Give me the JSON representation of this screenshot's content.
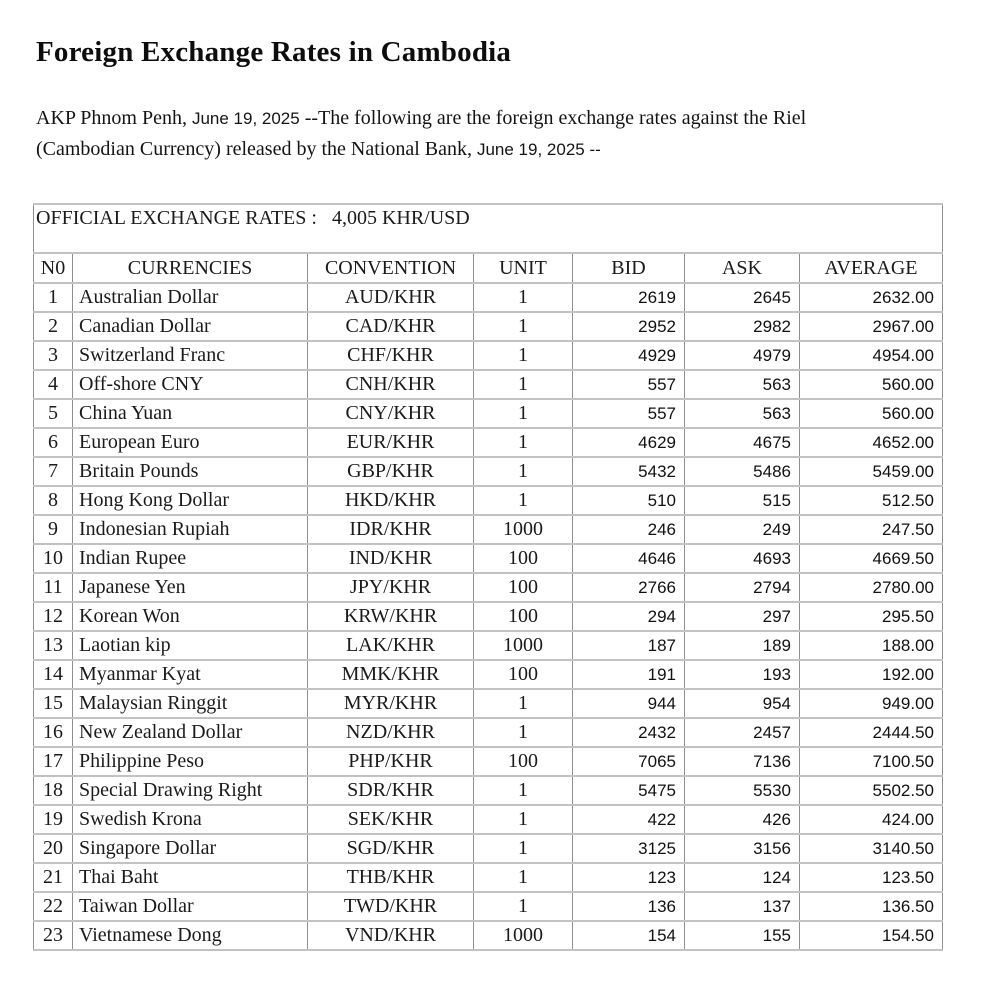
{
  "page": {
    "title": "Foreign Exchange Rates in Cambodia"
  },
  "intro": {
    "pre1": "AKP Phnom Penh, ",
    "date1": "June 19, 2025",
    "post1": " --The following are the foreign exchange rates against the Riel",
    "line2_pre": "(Cambodian Currency) released by the National Bank, ",
    "date2": "June 19, 2025",
    "post2": " --"
  },
  "rates_table": {
    "official_label": "OFFICIAL EXCHANGE RATES :",
    "official_value": "4,005 KHR/USD",
    "columns": [
      "N0",
      "CURRENCIES",
      "CONVENTION",
      "UNIT",
      "BID",
      "ASK",
      "AVERAGE"
    ],
    "rows": [
      {
        "no": "1",
        "currency": "Australian Dollar",
        "convention": "AUD/KHR",
        "unit": "1",
        "bid": "2619",
        "ask": "2645",
        "average": "2632.00"
      },
      {
        "no": "2",
        "currency": "Canadian Dollar",
        "convention": "CAD/KHR",
        "unit": "1",
        "bid": "2952",
        "ask": "2982",
        "average": "2967.00"
      },
      {
        "no": "3",
        "currency": "Switzerland Franc",
        "convention": "CHF/KHR",
        "unit": "1",
        "bid": "4929",
        "ask": "4979",
        "average": "4954.00"
      },
      {
        "no": "4",
        "currency": "Off-shore CNY",
        "convention": "CNH/KHR",
        "unit": "1",
        "bid": "557",
        "ask": "563",
        "average": "560.00"
      },
      {
        "no": "5",
        "currency": "China Yuan",
        "convention": "CNY/KHR",
        "unit": "1",
        "bid": "557",
        "ask": "563",
        "average": "560.00"
      },
      {
        "no": "6",
        "currency": "European Euro",
        "convention": "EUR/KHR",
        "unit": "1",
        "bid": "4629",
        "ask": "4675",
        "average": "4652.00"
      },
      {
        "no": "7",
        "currency": "Britain Pounds",
        "convention": "GBP/KHR",
        "unit": "1",
        "bid": "5432",
        "ask": "5486",
        "average": "5459.00"
      },
      {
        "no": "8",
        "currency": "Hong Kong Dollar",
        "convention": "HKD/KHR",
        "unit": "1",
        "bid": "510",
        "ask": "515",
        "average": "512.50"
      },
      {
        "no": "9",
        "currency": "Indonesian Rupiah",
        "convention": "IDR/KHR",
        "unit": "1000",
        "bid": "246",
        "ask": "249",
        "average": "247.50"
      },
      {
        "no": "10",
        "currency": "Indian Rupee",
        "convention": "IND/KHR",
        "unit": "100",
        "bid": "4646",
        "ask": "4693",
        "average": "4669.50"
      },
      {
        "no": "11",
        "currency": "Japanese Yen",
        "convention": "JPY/KHR",
        "unit": "100",
        "bid": "2766",
        "ask": "2794",
        "average": "2780.00"
      },
      {
        "no": "12",
        "currency": "Korean Won",
        "convention": "KRW/KHR",
        "unit": "100",
        "bid": "294",
        "ask": "297",
        "average": "295.50"
      },
      {
        "no": "13",
        "currency": "Laotian kip",
        "convention": "LAK/KHR",
        "unit": "1000",
        "bid": "187",
        "ask": "189",
        "average": "188.00"
      },
      {
        "no": "14",
        "currency": "Myanmar Kyat",
        "convention": "MMK/KHR",
        "unit": "100",
        "bid": "191",
        "ask": "193",
        "average": "192.00"
      },
      {
        "no": "15",
        "currency": "Malaysian Ringgit",
        "convention": "MYR/KHR",
        "unit": "1",
        "bid": "944",
        "ask": "954",
        "average": "949.00"
      },
      {
        "no": "16",
        "currency": "New Zealand Dollar",
        "convention": "NZD/KHR",
        "unit": "1",
        "bid": "2432",
        "ask": "2457",
        "average": "2444.50"
      },
      {
        "no": "17",
        "currency": "Philippine Peso",
        "convention": "PHP/KHR",
        "unit": "100",
        "bid": "7065",
        "ask": "7136",
        "average": "7100.50"
      },
      {
        "no": "18",
        "currency": "Special Drawing Right",
        "convention": "SDR/KHR",
        "unit": "1",
        "bid": "5475",
        "ask": "5530",
        "average": "5502.50"
      },
      {
        "no": "19",
        "currency": "Swedish Krona",
        "convention": "SEK/KHR",
        "unit": "1",
        "bid": "422",
        "ask": "426",
        "average": "424.00"
      },
      {
        "no": "20",
        "currency": "Singapore Dollar",
        "convention": "SGD/KHR",
        "unit": "1",
        "bid": "3125",
        "ask": "3156",
        "average": "3140.50"
      },
      {
        "no": "21",
        "currency": "Thai Baht",
        "convention": "THB/KHR",
        "unit": "1",
        "bid": "123",
        "ask": "124",
        "average": "123.50"
      },
      {
        "no": "22",
        "currency": "Taiwan Dollar",
        "convention": "TWD/KHR",
        "unit": "1",
        "bid": "136",
        "ask": "137",
        "average": "136.50"
      },
      {
        "no": "23",
        "currency": "Vietnamese Dong",
        "convention": "VND/KHR",
        "unit": "1000",
        "bid": "154",
        "ask": "155",
        "average": "154.50"
      }
    ]
  }
}
